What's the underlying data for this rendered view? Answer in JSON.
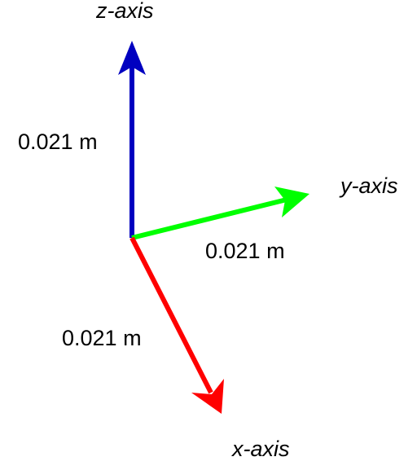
{
  "axes": {
    "z": {
      "name": "z-axis",
      "length_label": "0.021 m",
      "color": "#0000c0"
    },
    "y": {
      "name": "y-axis",
      "length_label": "0.021 m",
      "color": "#00ff00"
    },
    "x": {
      "name": "x-axis",
      "length_label": "0.021 m",
      "color": "#ff0000"
    }
  }
}
